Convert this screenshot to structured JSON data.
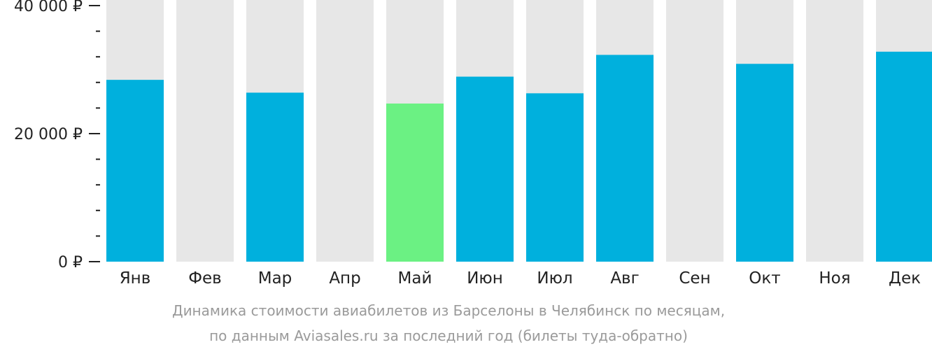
{
  "chart_data": {
    "type": "bar",
    "categories": [
      "Янв",
      "Фев",
      "Мар",
      "Апр",
      "Май",
      "Июн",
      "Июл",
      "Авг",
      "Сен",
      "Окт",
      "Ноя",
      "Дек"
    ],
    "values": [
      28400,
      null,
      26400,
      null,
      24700,
      28900,
      26300,
      32300,
      null,
      30900,
      null,
      32800
    ],
    "highlight_index": 4,
    "ylim": [
      0,
      40000
    ],
    "y_ticks": [
      0,
      20000,
      40000
    ],
    "y_tick_labels": [
      "0 ₽",
      "20 000 ₽",
      "40 000 ₽"
    ],
    "minor_ticks_per_interval": 5,
    "colors": {
      "bar": "#00b0dd",
      "highlight": "#6bf183",
      "background_bar": "#e7e7e7",
      "axis_text": "#222222"
    }
  },
  "caption": {
    "line1": "Динамика стоимости авиабилетов из Барселоны в Челябинск по месяцам,",
    "line2": "по данным Aviasales.ru за последний год (билеты туда-обратно)"
  }
}
